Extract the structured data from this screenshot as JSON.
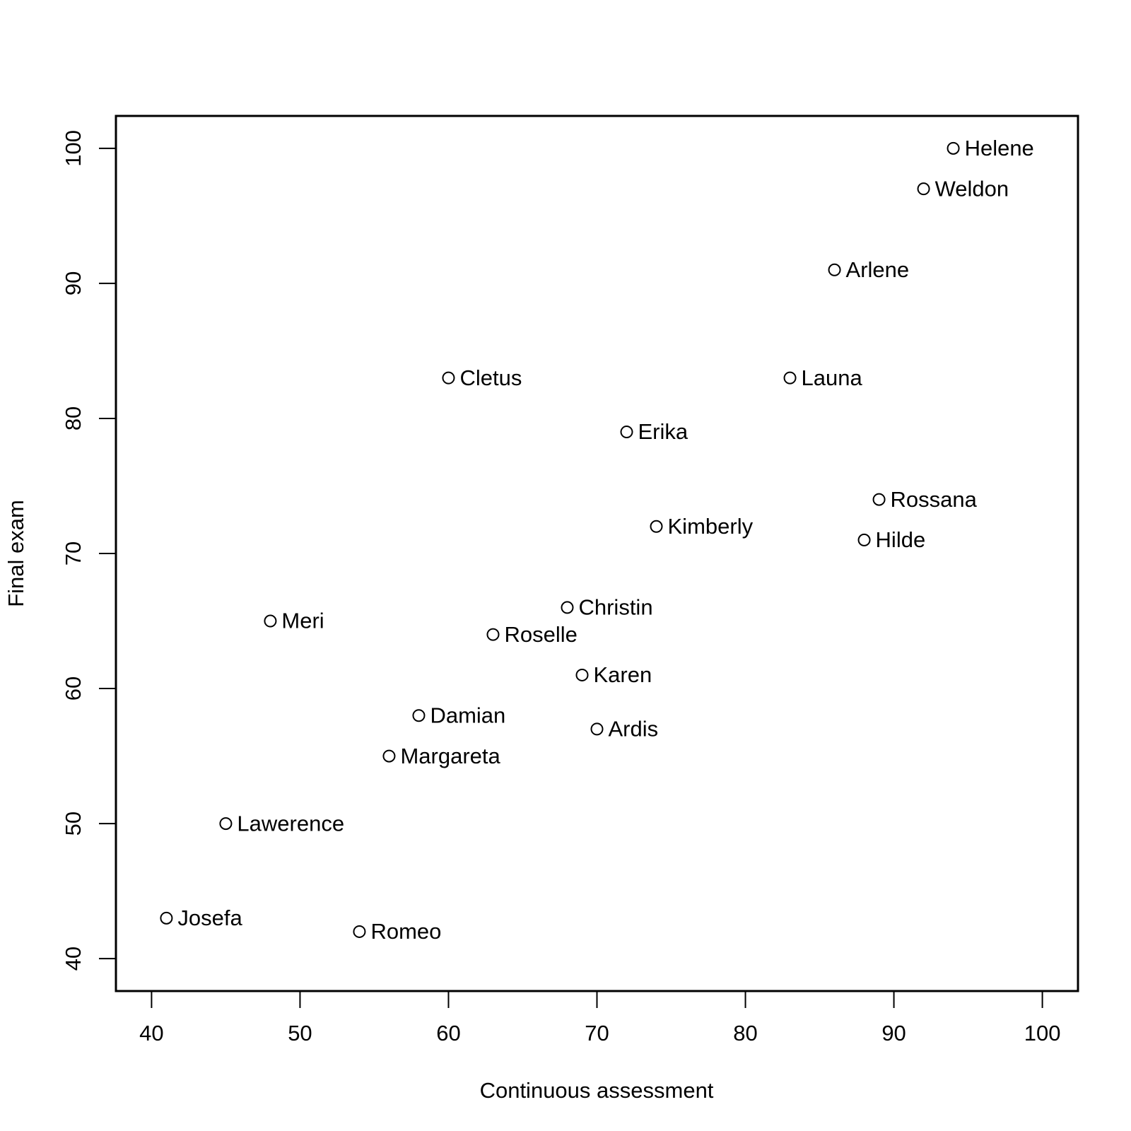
{
  "chart_data": {
    "type": "scatter",
    "x_label": "Continuous assessment",
    "y_label": "Final exam",
    "labels": [
      "Helene",
      "Weldon",
      "Arlene",
      "Cletus",
      "Launa",
      "Erika",
      "Rossana",
      "Kimberly",
      "Hilde",
      "Meri",
      "Christin",
      "Roselle",
      "Karen",
      "Damian",
      "Ardis",
      "Margareta",
      "Lawerence",
      "Josefa",
      "Romeo"
    ],
    "x": [
      94,
      92,
      86,
      60,
      83,
      72,
      89,
      74,
      88,
      48,
      68,
      63,
      69,
      58,
      70,
      56,
      45,
      41,
      54
    ],
    "y": [
      100,
      97,
      91,
      83,
      83,
      79,
      74,
      72,
      71,
      65,
      66,
      64,
      61,
      58,
      57,
      55,
      50,
      43,
      42
    ],
    "color": "#000000",
    "xlim": [
      37.6,
      102.4
    ],
    "ylim": [
      37.6,
      102.4
    ],
    "xticks": [
      40,
      50,
      60,
      70,
      80,
      90,
      100
    ],
    "yticks": [
      40,
      50,
      60,
      70,
      80,
      90,
      100
    ]
  }
}
